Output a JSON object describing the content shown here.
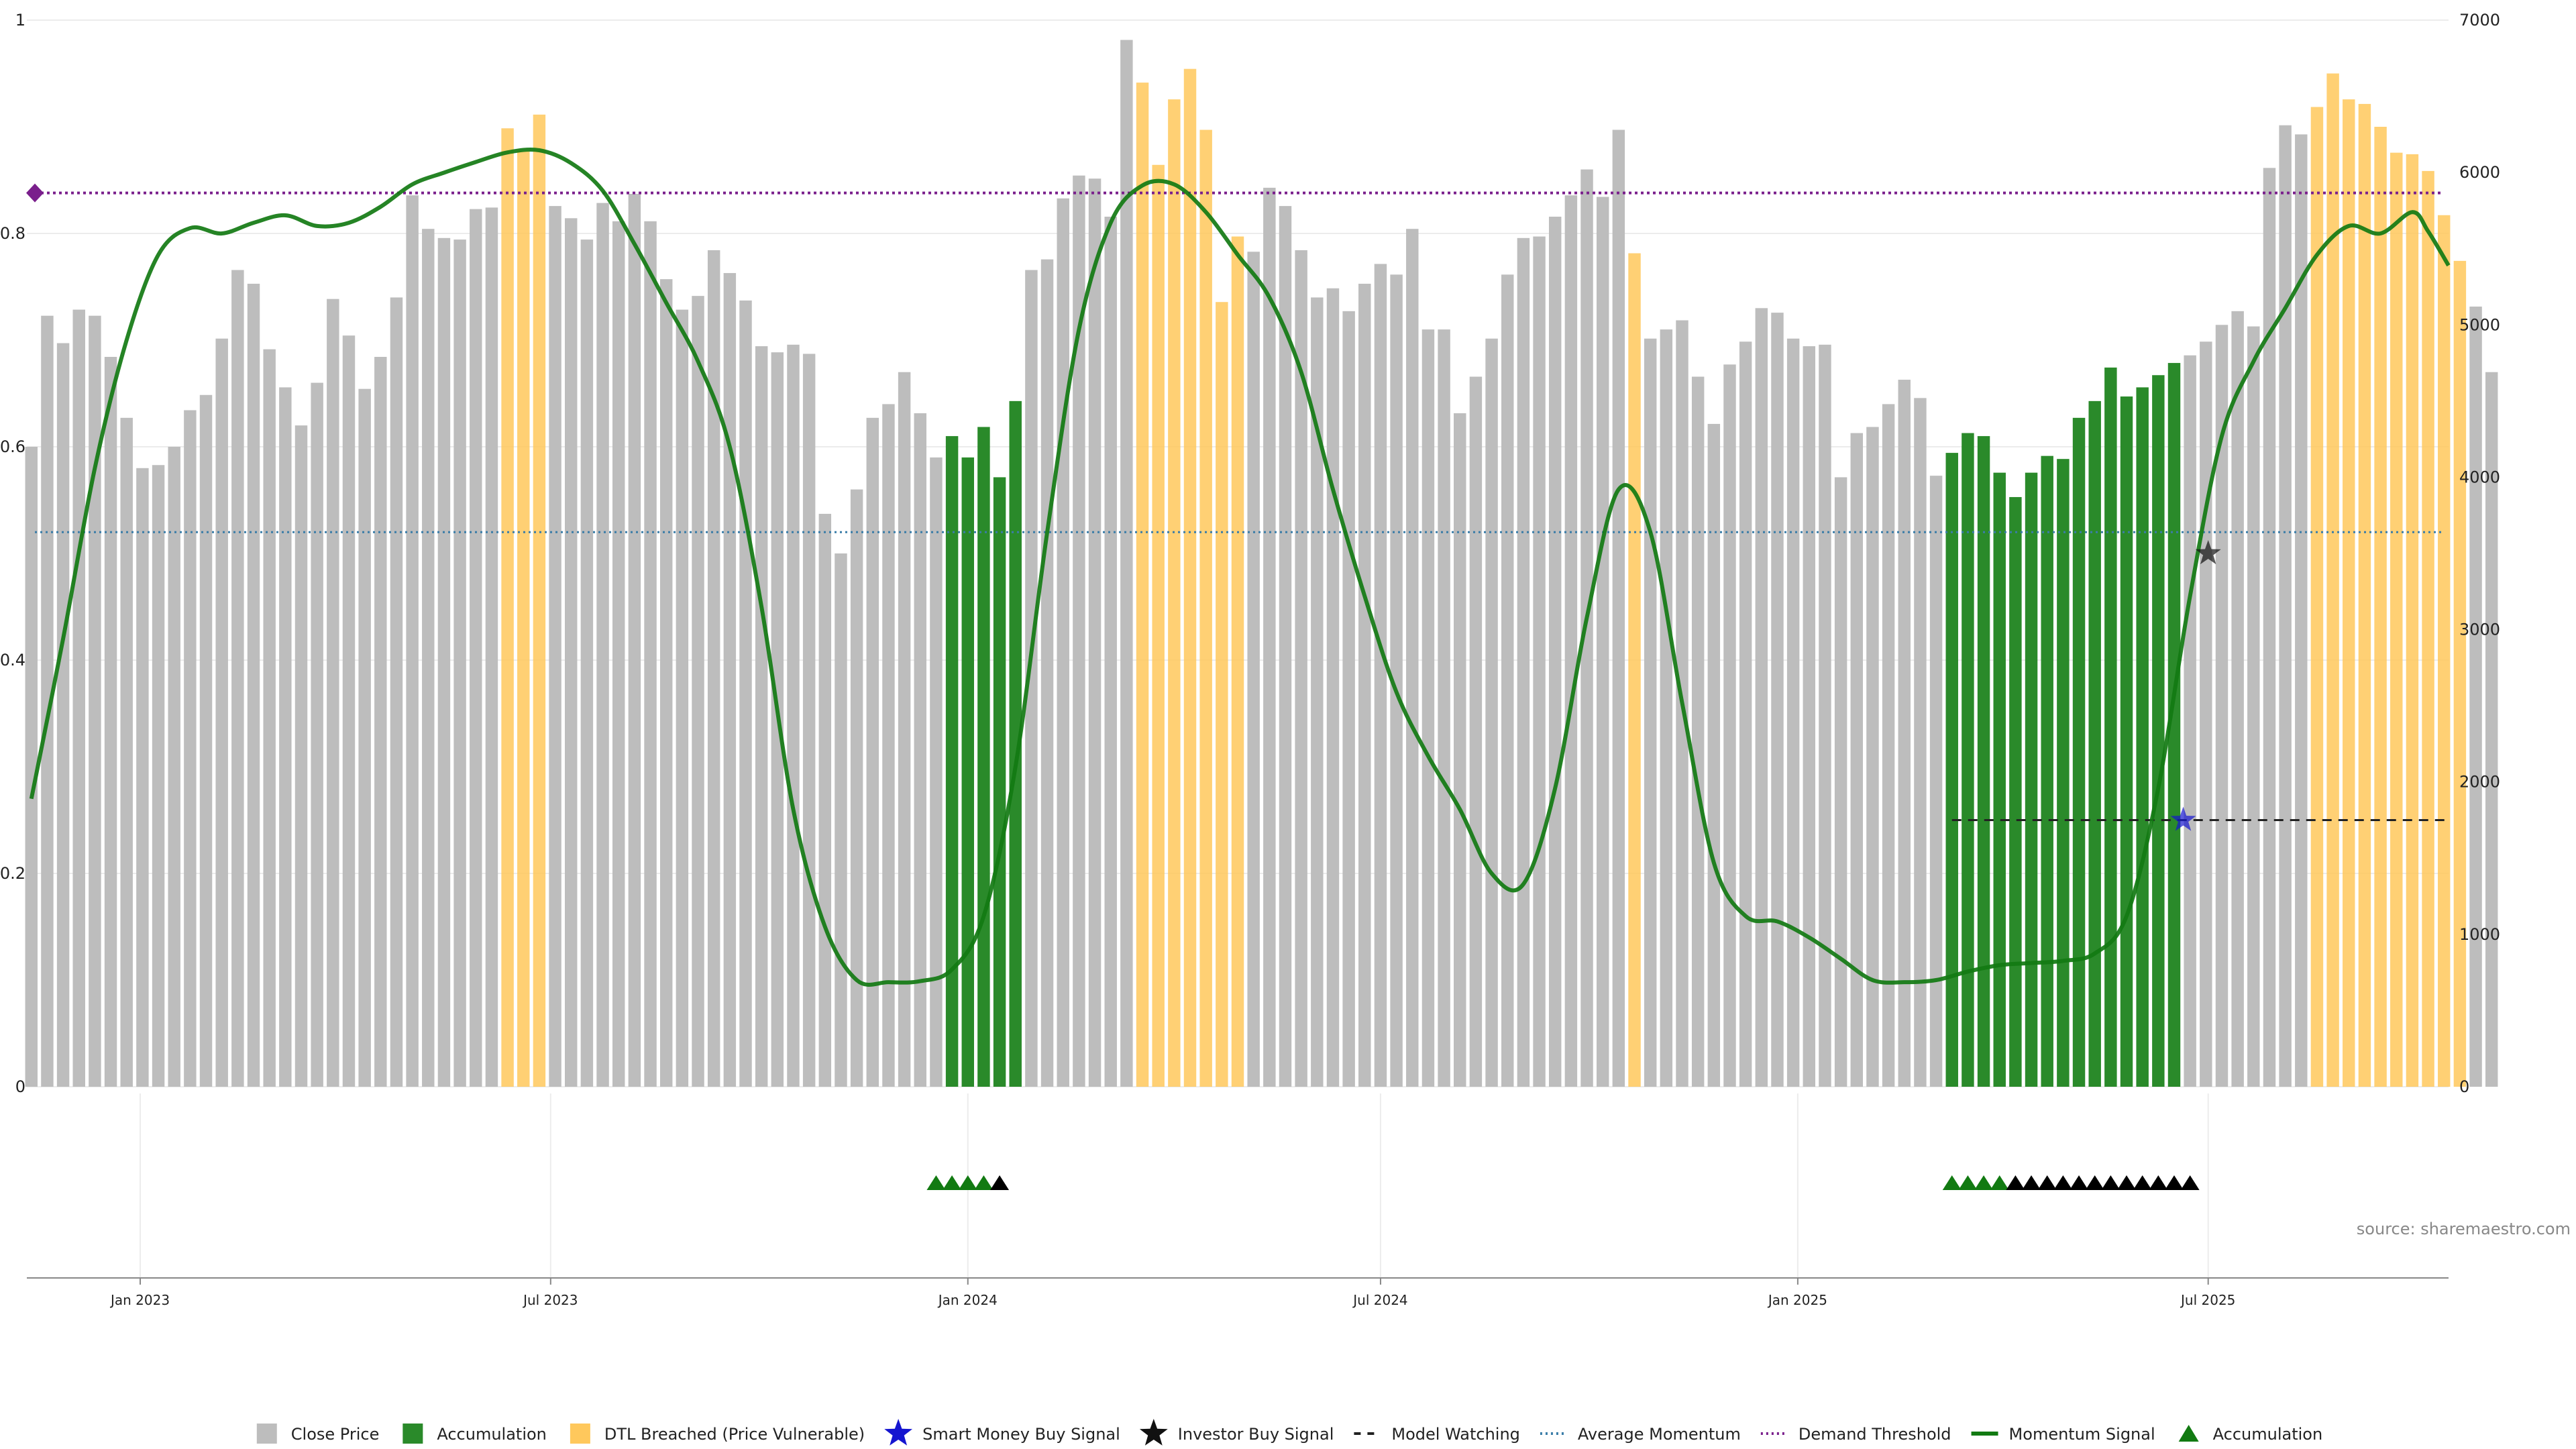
{
  "chart_data": {
    "type": "bar",
    "source": "source: sharemaestro.com",
    "left_axis": {
      "ylim": [
        0,
        1
      ],
      "ticks": [
        0,
        0.2,
        0.4,
        0.6,
        0.8,
        1
      ],
      "tick_labels": [
        "0",
        "0.2",
        "0.4",
        "0.6",
        "0.8",
        "1"
      ]
    },
    "right_axis": {
      "ylim": [
        0,
        7000
      ],
      "ticks": [
        0,
        1000,
        2000,
        3000,
        4000,
        5000,
        6000,
        7000
      ],
      "tick_labels": [
        "0",
        "1000",
        "2000",
        "3000",
        "4000",
        "5000",
        "6000",
        "7000"
      ]
    },
    "x_axis": {
      "start": "2022-11-12",
      "end": "2025-10-15",
      "tick_dates": [
        "2023-01-01",
        "2023-07-01",
        "2024-01-01",
        "2024-07-01",
        "2025-01-01",
        "2025-07-01"
      ],
      "tick_labels": [
        "Jan 2023",
        "Jul 2023",
        "Jan 2024",
        "Jul 2024",
        "Jan 2025",
        "Jul 2025"
      ]
    },
    "close_price": {
      "start_date": "2022-11-14",
      "interval_days": 7,
      "values": [
        4200,
        5060,
        4880,
        5100,
        5060,
        4790,
        4390,
        4060,
        4080,
        4200,
        4440,
        4540,
        4910,
        5360,
        5270,
        4840,
        4590,
        4340,
        4620,
        5170,
        4930,
        4580,
        4790,
        5180,
        5850,
        5630,
        5570,
        5560,
        5760,
        5770,
        6290,
        6140,
        6380,
        5780,
        5700,
        5560,
        5800,
        5680,
        5860,
        5680,
        5300,
        5100,
        5190,
        5490,
        5340,
        5160,
        4860,
        4820,
        4870,
        4810,
        3760,
        3500,
        3920,
        4390,
        4480,
        4690,
        4420,
        4130,
        4270,
        4130,
        4330,
        4000,
        4500,
        5360,
        5430,
        5830,
        5980,
        5960,
        5710,
        6870,
        6590,
        6050,
        6480,
        6680,
        6280,
        5150,
        5580,
        5480,
        5900,
        5780,
        5490,
        5180,
        5240,
        5090,
        5270,
        5400,
        5330,
        5630,
        4970,
        4970,
        4420,
        4660,
        4910,
        5330,
        5570,
        5580,
        5710,
        5850,
        6020,
        5840,
        6280,
        5470,
        4910,
        4970,
        5030,
        4660,
        4350,
        4740,
        4890,
        5110,
        5080,
        4910,
        4860,
        4870,
        4000,
        4290,
        4330,
        4480,
        4640,
        4520,
        4010,
        4160,
        4290,
        4270,
        4030,
        3870,
        4030,
        4140,
        4120,
        4390,
        4500,
        4720,
        4530,
        4590,
        4670,
        4750,
        4800,
        4890,
        5000,
        5090,
        4990,
        6030,
        6310,
        6250,
        6430,
        6650,
        6480,
        6450,
        6300,
        6130,
        6120,
        6010,
        5720,
        5420,
        5120,
        4690
      ],
      "dtl_breached_indices": [
        30,
        31,
        32,
        70,
        71,
        72,
        73,
        74,
        75,
        76,
        101,
        144,
        145,
        146,
        147,
        148,
        149,
        150,
        151,
        152,
        153
      ],
      "accumulation_indices": [
        58,
        59,
        60,
        61,
        62,
        121,
        122,
        123,
        124,
        125,
        126,
        127,
        128,
        129,
        130,
        131,
        132,
        133,
        134,
        135
      ]
    },
    "momentum_signal": {
      "points": [
        [
          "2022-11-14",
          0.27
        ],
        [
          "2022-11-28",
          0.42
        ],
        [
          "2022-12-12",
          0.58
        ],
        [
          "2022-12-26",
          0.7
        ],
        [
          "2023-01-09",
          0.78
        ],
        [
          "2023-01-23",
          0.805
        ],
        [
          "2023-02-06",
          0.8
        ],
        [
          "2023-02-20",
          0.81
        ],
        [
          "2023-03-06",
          0.817
        ],
        [
          "2023-03-20",
          0.807
        ],
        [
          "2023-04-03",
          0.81
        ],
        [
          "2023-04-17",
          0.825
        ],
        [
          "2023-05-01",
          0.846
        ],
        [
          "2023-05-15",
          0.857
        ],
        [
          "2023-05-29",
          0.867
        ],
        [
          "2023-06-12",
          0.876
        ],
        [
          "2023-06-26",
          0.878
        ],
        [
          "2023-07-10",
          0.866
        ],
        [
          "2023-07-24",
          0.84
        ],
        [
          "2023-08-07",
          0.79
        ],
        [
          "2023-08-21",
          0.735
        ],
        [
          "2023-09-04",
          0.68
        ],
        [
          "2023-09-18",
          0.6
        ],
        [
          "2023-10-02",
          0.45
        ],
        [
          "2023-10-16",
          0.26
        ],
        [
          "2023-10-30",
          0.15
        ],
        [
          "2023-11-13",
          0.1
        ],
        [
          "2023-11-27",
          0.098
        ],
        [
          "2023-12-11",
          0.099
        ],
        [
          "2023-12-25",
          0.11
        ],
        [
          "2024-01-08",
          0.16
        ],
        [
          "2024-01-22",
          0.3
        ],
        [
          "2024-02-05",
          0.52
        ],
        [
          "2024-02-19",
          0.71
        ],
        [
          "2024-03-04",
          0.81
        ],
        [
          "2024-03-18",
          0.845
        ],
        [
          "2024-04-01",
          0.846
        ],
        [
          "2024-04-15",
          0.82
        ],
        [
          "2024-04-29",
          0.78
        ],
        [
          "2024-05-13",
          0.74
        ],
        [
          "2024-05-27",
          0.67
        ],
        [
          "2024-06-10",
          0.56
        ],
        [
          "2024-06-24",
          0.46
        ],
        [
          "2024-07-08",
          0.37
        ],
        [
          "2024-07-22",
          0.31
        ],
        [
          "2024-08-05",
          0.26
        ],
        [
          "2024-08-19",
          0.2
        ],
        [
          "2024-09-02",
          0.19
        ],
        [
          "2024-09-16",
          0.28
        ],
        [
          "2024-09-30",
          0.44
        ],
        [
          "2024-10-14",
          0.56
        ],
        [
          "2024-10-28",
          0.52
        ],
        [
          "2024-11-11",
          0.36
        ],
        [
          "2024-11-25",
          0.21
        ],
        [
          "2024-12-09",
          0.16
        ],
        [
          "2024-12-23",
          0.155
        ],
        [
          "2025-01-06",
          0.14
        ],
        [
          "2025-01-20",
          0.12
        ],
        [
          "2025-02-03",
          0.1
        ],
        [
          "2025-02-17",
          0.098
        ],
        [
          "2025-03-03",
          0.1
        ],
        [
          "2025-03-17",
          0.108
        ],
        [
          "2025-03-31",
          0.114
        ],
        [
          "2025-04-14",
          0.116
        ],
        [
          "2025-04-28",
          0.118
        ],
        [
          "2025-05-12",
          0.125
        ],
        [
          "2025-05-26",
          0.16
        ],
        [
          "2025-06-09",
          0.28
        ],
        [
          "2025-06-23",
          0.46
        ],
        [
          "2025-07-07",
          0.61
        ],
        [
          "2025-07-21",
          0.68
        ],
        [
          "2025-08-04",
          0.73
        ],
        [
          "2025-08-18",
          0.78
        ],
        [
          "2025-09-01",
          0.807
        ],
        [
          "2025-09-15",
          0.8
        ],
        [
          "2025-09-29",
          0.82
        ],
        [
          "2025-10-06",
          0.802
        ],
        [
          "2025-10-15",
          0.77
        ]
      ]
    },
    "average_momentum": 0.52,
    "demand_threshold": 0.838,
    "model_watching": {
      "start": "2025-03-10",
      "end": "2025-10-15",
      "value": 0.25
    },
    "smart_money_buy_signal": [
      [
        "2025-06-20",
        0.25
      ]
    ],
    "investor_buy_signal": [
      [
        "2025-07-01",
        0.5
      ]
    ],
    "accumulation_markers": [
      {
        "date": "2023-12-18",
        "color": "green"
      },
      {
        "date": "2023-12-25",
        "color": "green"
      },
      {
        "date": "2024-01-01",
        "color": "green"
      },
      {
        "date": "2024-01-08",
        "color": "green"
      },
      {
        "date": "2024-01-15",
        "color": "black"
      },
      {
        "date": "2025-03-10",
        "color": "green"
      },
      {
        "date": "2025-03-17",
        "color": "green"
      },
      {
        "date": "2025-03-24",
        "color": "green"
      },
      {
        "date": "2025-03-31",
        "color": "green"
      },
      {
        "date": "2025-04-07",
        "color": "black"
      },
      {
        "date": "2025-04-14",
        "color": "black"
      },
      {
        "date": "2025-04-21",
        "color": "black"
      },
      {
        "date": "2025-04-28",
        "color": "black"
      },
      {
        "date": "2025-05-05",
        "color": "black"
      },
      {
        "date": "2025-05-12",
        "color": "black"
      },
      {
        "date": "2025-05-19",
        "color": "black"
      },
      {
        "date": "2025-05-26",
        "color": "black"
      },
      {
        "date": "2025-06-02",
        "color": "black"
      },
      {
        "date": "2025-06-09",
        "color": "black"
      },
      {
        "date": "2025-06-16",
        "color": "black"
      },
      {
        "date": "2025-06-23",
        "color": "black"
      }
    ],
    "colors": {
      "close_price": "#bdbdbd",
      "accumulation": "#2a8a2a",
      "dtl_breached": "#ffc85c",
      "smart_money": "#1515d0",
      "investor": "#111111",
      "model_watching": "#222222",
      "average_momentum": "#3a7da8",
      "demand_threshold": "#7a1f8c",
      "momentum_signal": "#127a12",
      "accumulation_marker": "#127a12"
    },
    "legend": [
      {
        "key": "close_price",
        "label": "Close Price",
        "symbol": "square"
      },
      {
        "key": "accumulation",
        "label": "Accumulation",
        "symbol": "square"
      },
      {
        "key": "dtl_breached",
        "label": "DTL Breached (Price Vulnerable)",
        "symbol": "square"
      },
      {
        "key": "smart_money",
        "label": "Smart Money Buy Signal",
        "symbol": "star"
      },
      {
        "key": "investor",
        "label": "Investor Buy Signal",
        "symbol": "star"
      },
      {
        "key": "model_watching",
        "label": "Model Watching",
        "symbol": "dash"
      },
      {
        "key": "average_momentum",
        "label": "Average Momentum",
        "symbol": "dot"
      },
      {
        "key": "demand_threshold",
        "label": "Demand Threshold",
        "symbol": "dot"
      },
      {
        "key": "momentum_signal",
        "label": "Momentum Signal",
        "symbol": "line"
      },
      {
        "key": "accumulation_marker",
        "label": "Accumulation",
        "symbol": "triangle"
      }
    ]
  }
}
